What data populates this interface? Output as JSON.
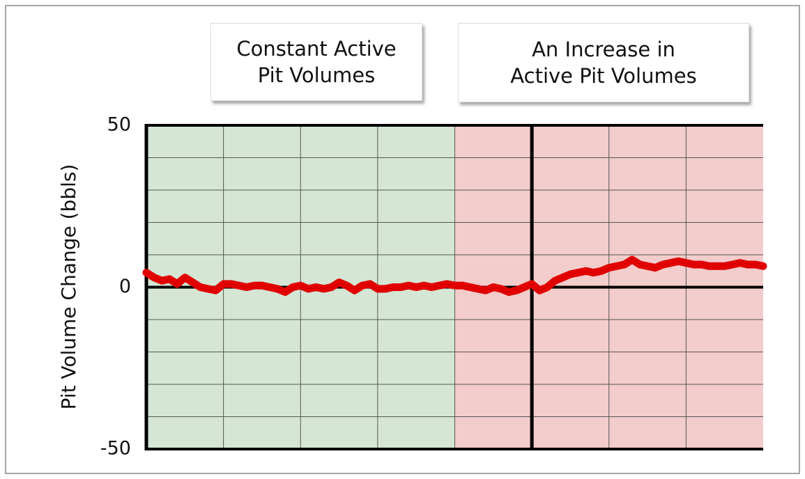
{
  "chart_data": {
    "type": "line",
    "ylabel": "Pit Volume Change (bbls)",
    "regions": [
      {
        "label": "Constant Active\nPit Volumes",
        "from": 0,
        "to": 40,
        "color": "#d5e6d5"
      },
      {
        "label": "An Increase in\nActive Pit Volumes",
        "from": 40,
        "to": 80,
        "color": "#f3cccc"
      }
    ],
    "xlim": [
      0,
      80
    ],
    "xgrid": [
      10,
      20,
      30,
      40,
      60,
      70
    ],
    "marker_x": 50,
    "ylim": [
      -50,
      50
    ],
    "yticks": [
      -50,
      0,
      50
    ],
    "ygrid": [
      -40,
      -30,
      -20,
      -10,
      10,
      20,
      30,
      40
    ],
    "x": [
      0,
      1,
      2,
      3,
      4,
      5,
      6,
      7,
      8,
      9,
      10,
      11,
      12,
      13,
      14,
      15,
      16,
      17,
      18,
      19,
      20,
      21,
      22,
      23,
      24,
      25,
      26,
      27,
      28,
      29,
      30,
      31,
      32,
      33,
      34,
      35,
      36,
      37,
      38,
      39,
      40,
      41,
      42,
      43,
      44,
      45,
      46,
      47,
      48,
      49,
      50,
      51,
      52,
      53,
      54,
      55,
      56,
      57,
      58,
      59,
      60,
      61,
      62,
      63,
      64,
      65,
      66,
      67,
      68,
      69,
      70,
      71,
      72,
      73,
      74,
      75,
      76,
      77,
      78,
      79,
      80
    ],
    "series": [
      {
        "name": "Pit Volume",
        "color": "#e00000",
        "values": [
          4.5,
          3,
          2,
          2.5,
          1,
          3,
          1.5,
          0,
          -0.5,
          -1,
          1,
          1,
          0.5,
          0,
          0.5,
          0.5,
          0,
          -0.5,
          -1.5,
          0,
          0.5,
          -0.5,
          0,
          -0.5,
          0,
          1.5,
          0.5,
          -1,
          0.5,
          1,
          -0.5,
          -0.5,
          0,
          0,
          0.5,
          0,
          0.5,
          0,
          0.5,
          1,
          0.5,
          0.5,
          0,
          -0.5,
          -1,
          0,
          -0.5,
          -1.5,
          -1,
          0,
          1,
          -1,
          0,
          2,
          3,
          4,
          4.5,
          5,
          4.5,
          5,
          6,
          6.5,
          7,
          8.5,
          7,
          6.5,
          6,
          7,
          7.5,
          8,
          7.5,
          7,
          7,
          6.5,
          6.5,
          6.5,
          7,
          7.5,
          7,
          7,
          6.5
        ]
      }
    ]
  }
}
